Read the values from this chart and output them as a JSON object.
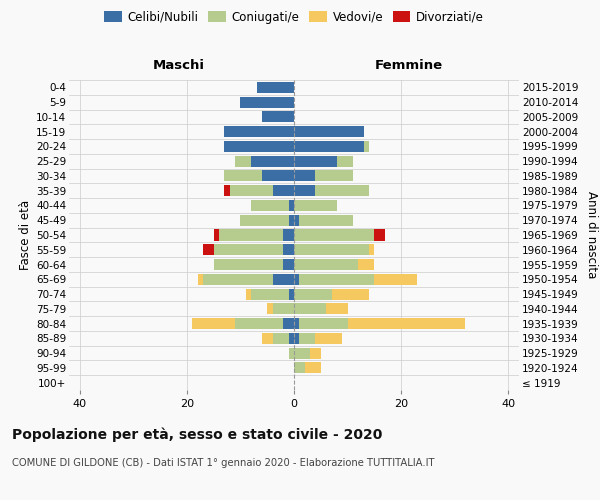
{
  "age_groups": [
    "100+",
    "95-99",
    "90-94",
    "85-89",
    "80-84",
    "75-79",
    "70-74",
    "65-69",
    "60-64",
    "55-59",
    "50-54",
    "45-49",
    "40-44",
    "35-39",
    "30-34",
    "25-29",
    "20-24",
    "15-19",
    "10-14",
    "5-9",
    "0-4"
  ],
  "birth_years": [
    "≤ 1919",
    "1920-1924",
    "1925-1929",
    "1930-1934",
    "1935-1939",
    "1940-1944",
    "1945-1949",
    "1950-1954",
    "1955-1959",
    "1960-1964",
    "1965-1969",
    "1970-1974",
    "1975-1979",
    "1980-1984",
    "1985-1989",
    "1990-1994",
    "1995-1999",
    "2000-2004",
    "2005-2009",
    "2010-2014",
    "2015-2019"
  ],
  "males": {
    "celibe": [
      0,
      0,
      0,
      1,
      2,
      0,
      1,
      4,
      2,
      2,
      2,
      1,
      1,
      4,
      6,
      8,
      13,
      13,
      6,
      10,
      7
    ],
    "coniugato": [
      0,
      0,
      1,
      3,
      9,
      4,
      7,
      13,
      13,
      13,
      12,
      9,
      7,
      8,
      7,
      3,
      0,
      0,
      0,
      0,
      0
    ],
    "vedovo": [
      0,
      0,
      0,
      2,
      8,
      1,
      1,
      1,
      0,
      0,
      0,
      0,
      0,
      0,
      0,
      0,
      0,
      0,
      0,
      0,
      0
    ],
    "divorziato": [
      0,
      0,
      0,
      0,
      0,
      0,
      0,
      0,
      0,
      2,
      1,
      0,
      0,
      1,
      0,
      0,
      0,
      0,
      0,
      0,
      0
    ]
  },
  "females": {
    "nubile": [
      0,
      0,
      0,
      1,
      1,
      0,
      0,
      1,
      0,
      0,
      0,
      1,
      0,
      4,
      4,
      8,
      13,
      13,
      0,
      0,
      0
    ],
    "coniugata": [
      0,
      2,
      3,
      3,
      9,
      6,
      7,
      14,
      12,
      14,
      15,
      10,
      8,
      10,
      7,
      3,
      1,
      0,
      0,
      0,
      0
    ],
    "vedova": [
      0,
      3,
      2,
      5,
      22,
      4,
      7,
      8,
      3,
      1,
      0,
      0,
      0,
      0,
      0,
      0,
      0,
      0,
      0,
      0,
      0
    ],
    "divorziata": [
      0,
      0,
      0,
      0,
      0,
      0,
      0,
      0,
      0,
      0,
      2,
      0,
      0,
      0,
      0,
      0,
      0,
      0,
      0,
      0,
      0
    ]
  },
  "colors": {
    "celibe": "#3a6ea5",
    "coniugato": "#b5cc8e",
    "vedovo": "#f5c860",
    "divorziato": "#cc1111"
  },
  "xlim": 42,
  "title": "Popolazione per età, sesso e stato civile - 2020",
  "subtitle": "COMUNE DI GILDONE (CB) - Dati ISTAT 1° gennaio 2020 - Elaborazione TUTTITALIA.IT",
  "left_header": "Maschi",
  "right_header": "Femmine",
  "ylabel_left": "Fasce di età",
  "ylabel_right": "Anni di nascita",
  "legend_labels": [
    "Celibi/Nubili",
    "Coniugati/e",
    "Vedovi/e",
    "Divorziati/e"
  ],
  "bg_color": "#f9f9f9"
}
